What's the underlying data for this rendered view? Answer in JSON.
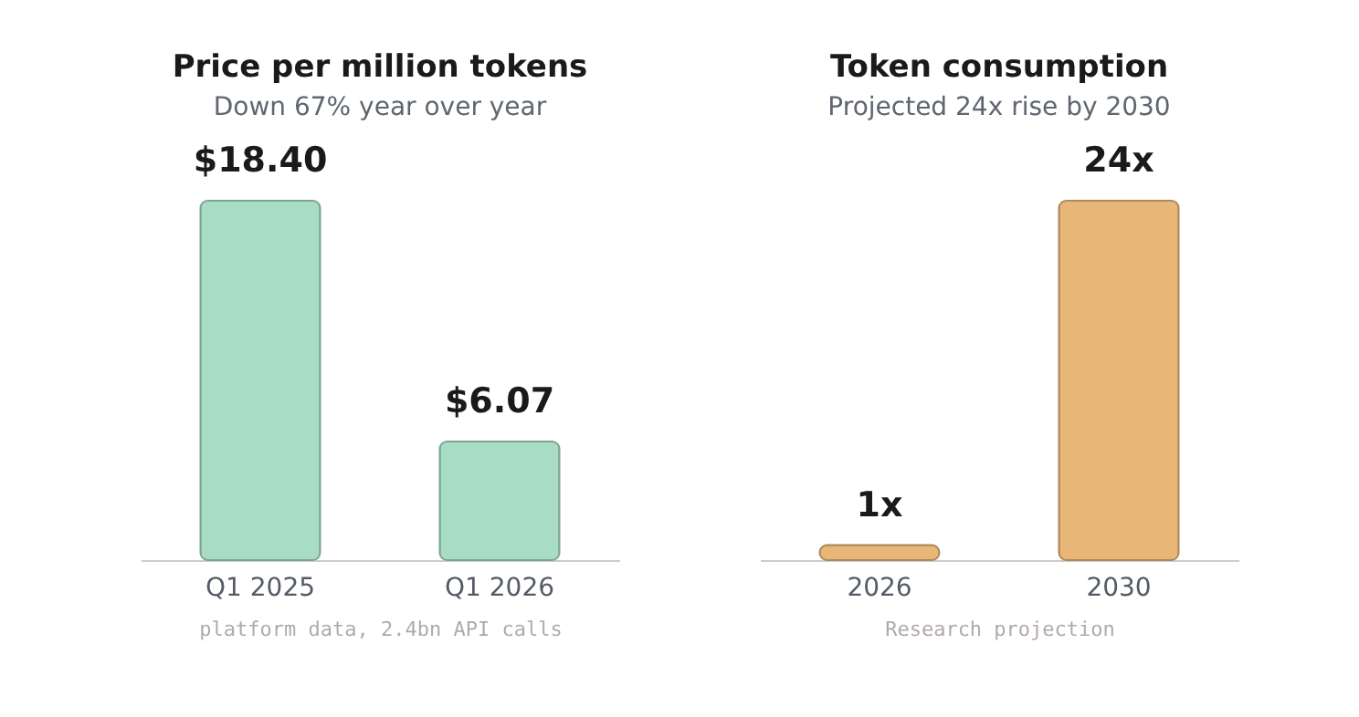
{
  "chart_data": [
    {
      "type": "bar",
      "title": "Price per million tokens",
      "subtitle": "Down 67% year over year",
      "categories": [
        "Q1 2025",
        "Q1 2026"
      ],
      "values": [
        18.4,
        6.07
      ],
      "value_labels": [
        "$18.40",
        "$6.07"
      ],
      "color": "#a8dcc5",
      "tick_labels": "x",
      "grid": false,
      "annotations": [
        "platform data, 2.4bn API calls"
      ]
    },
    {
      "type": "bar",
      "title": "Token consumption",
      "subtitle": "Projected 24x rise by 2030",
      "categories": [
        "2026",
        "2030"
      ],
      "values": [
        1,
        24
      ],
      "value_labels": [
        "1x",
        "24x"
      ],
      "color": "#e8b778",
      "tick_labels": "x",
      "grid": false,
      "annotations": [
        "Research projection"
      ]
    }
  ]
}
